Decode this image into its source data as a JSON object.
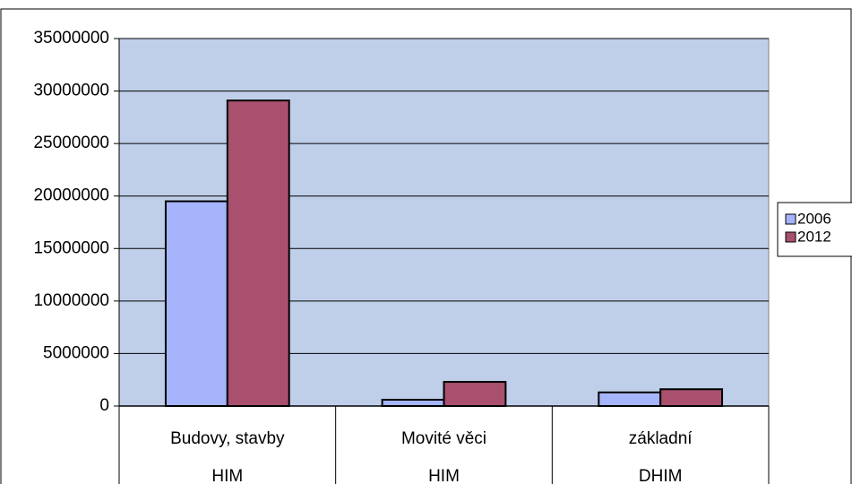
{
  "chart_data": {
    "type": "bar",
    "categories": [
      [
        "Budovy, stavby",
        "HIM"
      ],
      [
        "Movité věci",
        "HIM"
      ],
      [
        "základní",
        "DHIM"
      ]
    ],
    "series": [
      {
        "name": "2006",
        "color": "#a6b4fc",
        "values": [
          19500000,
          600000,
          1300000
        ]
      },
      {
        "name": "2012",
        "color": "#a9506f",
        "values": [
          29100000,
          2300000,
          1600000
        ]
      }
    ],
    "ylim": [
      0,
      35000000
    ],
    "yticks": [
      0,
      5000000,
      10000000,
      15000000,
      20000000,
      25000000,
      30000000,
      35000000
    ],
    "grid": true,
    "legend": "right",
    "plot_background": "#bfcfea"
  }
}
